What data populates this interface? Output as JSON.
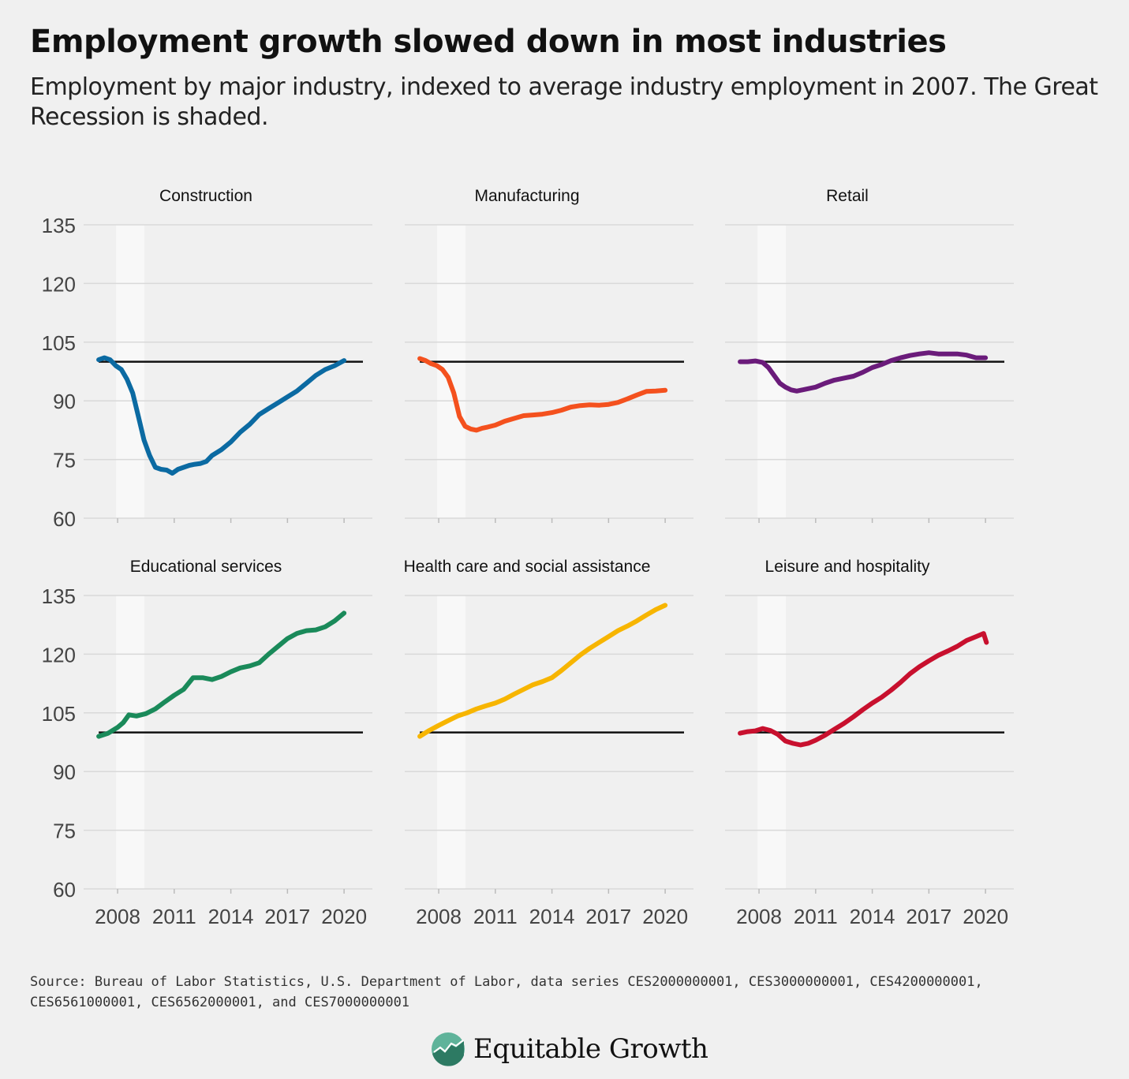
{
  "title": "Employment growth slowed down in most industries",
  "subtitle": "Employment by major industry, indexed to average industry employment in 2007. The Great Recession is shaded.",
  "source": "Source: Bureau of Labor Statistics, U.S. Department of Labor, data series CES2000000001, CES3000000001, CES4200000001, CES6561000001, CES6562000001, and CES7000000001",
  "logo_text": "Equitable Growth",
  "chart_data": {
    "type": "line",
    "y_ticks": [
      135,
      120,
      105,
      90,
      75,
      60
    ],
    "x_ticks": [
      2008,
      2011,
      2014,
      2017,
      2020
    ],
    "xlim": [
      2006.2,
      2021.5
    ],
    "ylim": [
      60,
      135
    ],
    "reference_line": 100,
    "recession_shading": [
      2007.92,
      2009.42
    ],
    "grid": true,
    "colors": {
      "background": "#f0f0f0",
      "shading": "#f8f8f8",
      "gridline": "#d9d9d9",
      "reference": "#111111"
    },
    "panels": [
      {
        "name": "Construction",
        "color": "#0b6aa2",
        "x": [
          2007.0,
          2007.3,
          2007.6,
          2007.9,
          2008.2,
          2008.5,
          2008.8,
          2009.1,
          2009.4,
          2009.7,
          2010.0,
          2010.3,
          2010.6,
          2010.9,
          2011.2,
          2011.5,
          2011.8,
          2012.1,
          2012.4,
          2012.7,
          2013.0,
          2013.5,
          2014.0,
          2014.5,
          2015.0,
          2015.5,
          2016.0,
          2016.5,
          2017.0,
          2017.5,
          2018.0,
          2018.5,
          2019.0,
          2019.5,
          2020.0
        ],
        "values": [
          100.5,
          101,
          100.5,
          99,
          98,
          95.5,
          92,
          86,
          80,
          76,
          73,
          72.5,
          72.3,
          71.5,
          72.5,
          73,
          73.5,
          73.8,
          74,
          74.5,
          76,
          77.5,
          79.5,
          82,
          84,
          86.5,
          88,
          89.5,
          91,
          92.5,
          94.5,
          96.5,
          98,
          99,
          100.3
        ]
      },
      {
        "name": "Manufacturing",
        "color": "#f4511e",
        "x": [
          2007.0,
          2007.3,
          2007.6,
          2007.9,
          2008.2,
          2008.5,
          2008.8,
          2009.1,
          2009.4,
          2009.7,
          2010.0,
          2010.3,
          2010.6,
          2011.0,
          2011.5,
          2012.0,
          2012.5,
          2013.0,
          2013.5,
          2014.0,
          2014.5,
          2015.0,
          2015.5,
          2016.0,
          2016.5,
          2017.0,
          2017.5,
          2018.0,
          2018.5,
          2019.0,
          2019.5,
          2020.0
        ],
        "values": [
          100.8,
          100.3,
          99.5,
          99,
          98,
          96,
          92,
          86,
          83.5,
          82.8,
          82.5,
          83,
          83.3,
          83.8,
          84.8,
          85.5,
          86.2,
          86.4,
          86.6,
          87,
          87.6,
          88.4,
          88.8,
          89,
          88.9,
          89.1,
          89.6,
          90.5,
          91.5,
          92.4,
          92.5,
          92.7
        ]
      },
      {
        "name": "Retail",
        "color": "#6a1b7a",
        "x": [
          2007.0,
          2007.4,
          2007.8,
          2008.2,
          2008.5,
          2008.8,
          2009.1,
          2009.4,
          2009.7,
          2010.0,
          2010.5,
          2011.0,
          2011.5,
          2012.0,
          2012.5,
          2013.0,
          2013.5,
          2014.0,
          2014.5,
          2015.0,
          2015.5,
          2016.0,
          2016.5,
          2017.0,
          2017.5,
          2018.0,
          2018.5,
          2019.0,
          2019.5,
          2020.0
        ],
        "values": [
          100,
          100,
          100.2,
          99.8,
          98.5,
          96.5,
          94.5,
          93.5,
          92.8,
          92.5,
          93,
          93.5,
          94.5,
          95.3,
          95.8,
          96.3,
          97.3,
          98.5,
          99.3,
          100.3,
          101,
          101.6,
          102,
          102.3,
          102,
          102,
          102,
          101.7,
          101,
          101
        ]
      },
      {
        "name": "Educational services",
        "color": "#1a8a5a",
        "x": [
          2007.0,
          2007.5,
          2008.0,
          2008.3,
          2008.6,
          2009.0,
          2009.5,
          2010.0,
          2010.5,
          2011.0,
          2011.5,
          2012.0,
          2012.5,
          2013.0,
          2013.5,
          2014.0,
          2014.5,
          2015.0,
          2015.5,
          2016.0,
          2016.5,
          2017.0,
          2017.5,
          2018.0,
          2018.5,
          2019.0,
          2019.5,
          2020.0
        ],
        "values": [
          99,
          99.8,
          101.3,
          102.5,
          104.5,
          104.2,
          104.8,
          106,
          107.8,
          109.5,
          111,
          114,
          114,
          113.5,
          114.3,
          115.5,
          116.5,
          117,
          117.8,
          120,
          122,
          124,
          125.3,
          126,
          126.2,
          127,
          128.5,
          130.5
        ]
      },
      {
        "name": "Health care and social assistance",
        "color": "#f7b500",
        "x": [
          2007.0,
          2007.5,
          2008.0,
          2008.5,
          2009.0,
          2009.5,
          2010.0,
          2010.5,
          2011.0,
          2011.5,
          2012.0,
          2012.5,
          2013.0,
          2013.5,
          2014.0,
          2014.5,
          2015.0,
          2015.5,
          2016.0,
          2016.5,
          2017.0,
          2017.5,
          2018.0,
          2018.5,
          2019.0,
          2019.5,
          2020.0
        ],
        "values": [
          99,
          100.5,
          101.8,
          103,
          104.2,
          105,
          106,
          106.8,
          107.5,
          108.5,
          109.8,
          111,
          112.2,
          113,
          114,
          115.8,
          117.8,
          119.8,
          121.5,
          123,
          124.5,
          126,
          127.2,
          128.5,
          130,
          131.4,
          132.5
        ]
      },
      {
        "name": "Leisure and hospitality",
        "color": "#c8102e",
        "x": [
          2007.0,
          2007.4,
          2007.8,
          2008.2,
          2008.6,
          2009.0,
          2009.4,
          2009.8,
          2010.2,
          2010.6,
          2011.0,
          2011.5,
          2012.0,
          2012.5,
          2013.0,
          2013.5,
          2014.0,
          2014.5,
          2015.0,
          2015.5,
          2016.0,
          2016.5,
          2017.0,
          2017.5,
          2018.0,
          2018.5,
          2019.0,
          2019.5,
          2019.9,
          2020.05
        ],
        "values": [
          99.8,
          100.2,
          100.4,
          101,
          100.5,
          99.5,
          97.8,
          97.2,
          96.8,
          97.2,
          98,
          99.3,
          100.8,
          102.3,
          104,
          105.8,
          107.5,
          109,
          110.8,
          112.8,
          115,
          116.8,
          118.3,
          119.7,
          120.8,
          122,
          123.5,
          124.5,
          125.3,
          123
        ]
      }
    ]
  }
}
